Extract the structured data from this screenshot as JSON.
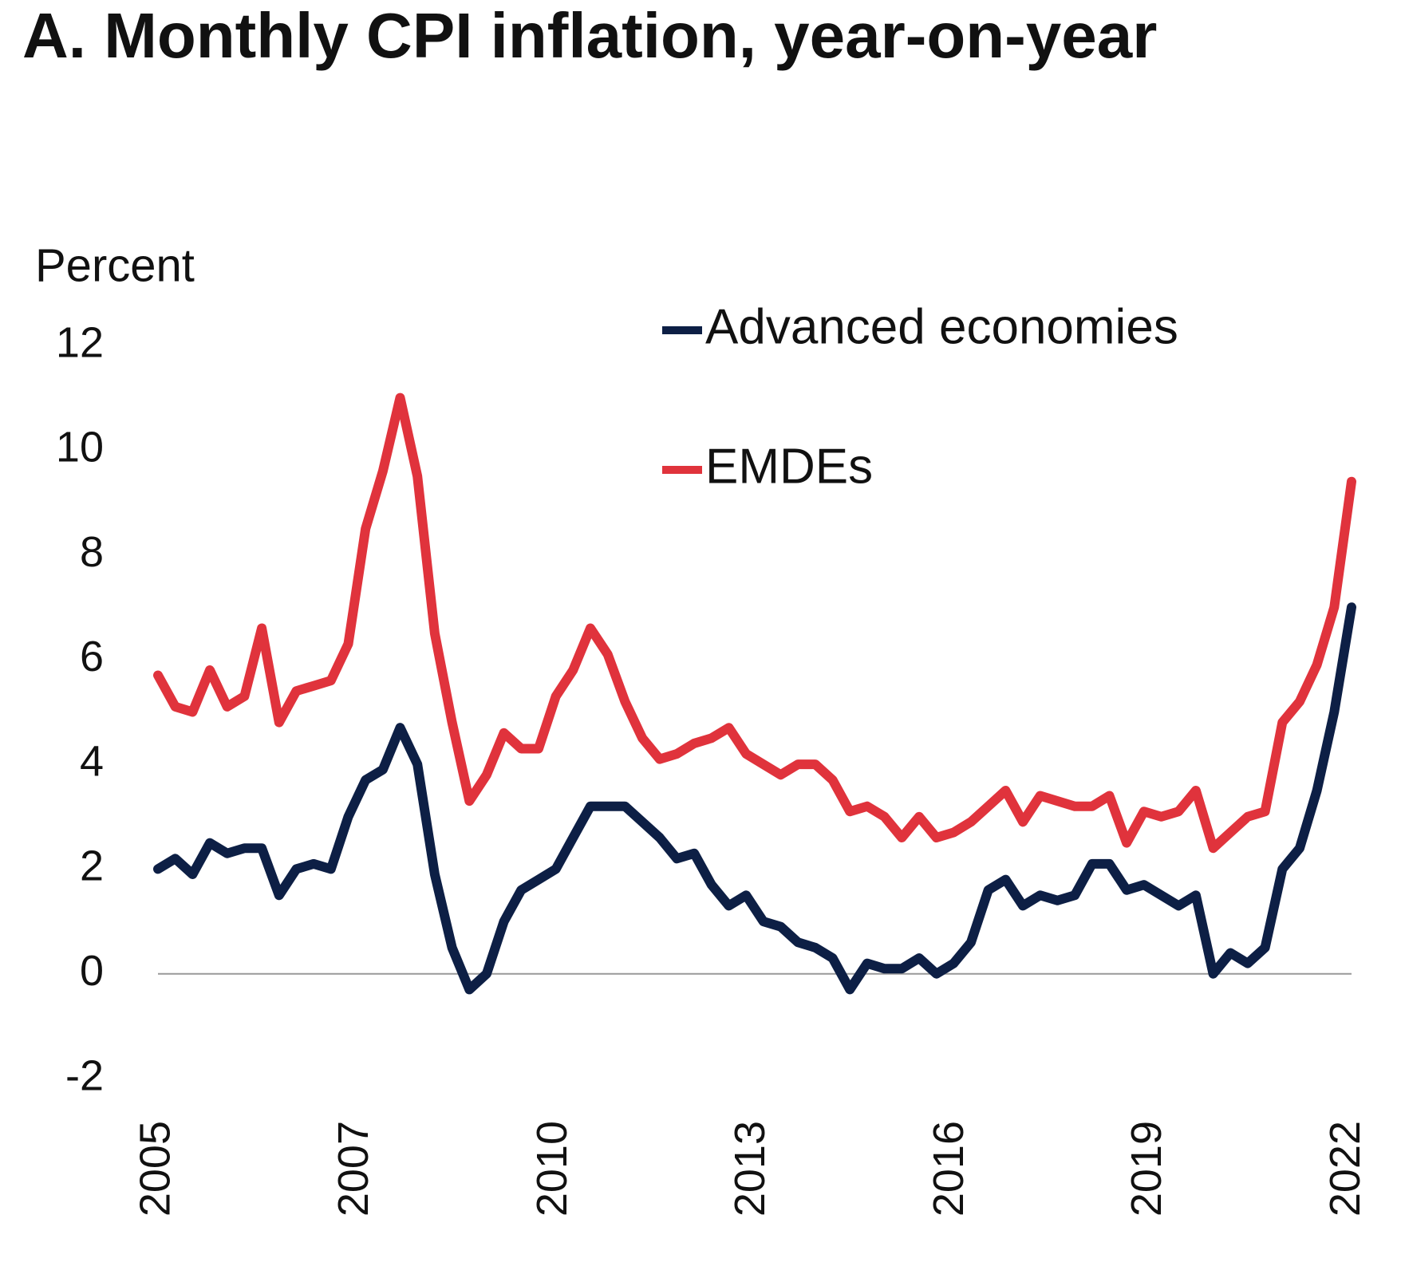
{
  "chart_data": {
    "type": "line",
    "title": "A. Monthly CPI inflation, year-on-year",
    "y_label": "Percent",
    "x": [
      2005.0,
      2005.25,
      2005.5,
      2005.75,
      2006.0,
      2006.25,
      2006.5,
      2006.75,
      2007.0,
      2007.25,
      2007.5,
      2007.75,
      2008.0,
      2008.25,
      2008.5,
      2008.75,
      2009.0,
      2009.25,
      2009.5,
      2009.75,
      2010.0,
      2010.25,
      2010.5,
      2010.75,
      2011.0,
      2011.25,
      2011.5,
      2011.75,
      2012.0,
      2012.25,
      2012.5,
      2012.75,
      2013.0,
      2013.25,
      2013.5,
      2013.75,
      2014.0,
      2014.25,
      2014.5,
      2014.75,
      2015.0,
      2015.25,
      2015.5,
      2015.75,
      2016.0,
      2016.25,
      2016.5,
      2016.75,
      2017.0,
      2017.25,
      2017.5,
      2017.75,
      2018.0,
      2018.25,
      2018.5,
      2018.75,
      2019.0,
      2019.25,
      2019.5,
      2019.75,
      2020.0,
      2020.25,
      2020.5,
      2020.75,
      2021.0,
      2021.25,
      2021.5,
      2021.75,
      2022.0,
      2022.25
    ],
    "series": [
      {
        "name": "Advanced economies",
        "color": "#0d1f45",
        "values": [
          2.0,
          2.2,
          1.9,
          2.5,
          2.3,
          2.4,
          2.4,
          1.5,
          2.0,
          2.1,
          2.0,
          3.0,
          3.7,
          3.9,
          4.7,
          4.0,
          1.9,
          0.5,
          -0.3,
          0.0,
          1.0,
          1.6,
          1.8,
          2.0,
          2.6,
          3.2,
          3.2,
          3.2,
          2.9,
          2.6,
          2.2,
          2.3,
          1.7,
          1.3,
          1.5,
          1.0,
          0.9,
          0.6,
          0.5,
          0.3,
          -0.3,
          0.2,
          0.1,
          0.1,
          0.3,
          0.0,
          0.2,
          0.6,
          1.6,
          1.8,
          1.3,
          1.5,
          1.4,
          1.5,
          2.1,
          2.1,
          1.6,
          1.7,
          1.5,
          1.3,
          1.5,
          0.0,
          0.4,
          0.2,
          0.5,
          2.0,
          2.4,
          3.5,
          5.0,
          7.0
        ]
      },
      {
        "name": "EMDEs",
        "color": "#e0333c",
        "values": [
          5.7,
          5.1,
          5.0,
          5.8,
          5.1,
          5.3,
          6.6,
          4.8,
          5.4,
          5.5,
          5.6,
          6.3,
          8.5,
          9.6,
          11.0,
          9.5,
          6.5,
          4.8,
          3.3,
          3.8,
          4.6,
          4.3,
          4.3,
          5.3,
          5.8,
          6.6,
          6.1,
          5.2,
          4.5,
          4.1,
          4.2,
          4.4,
          4.5,
          4.7,
          4.2,
          4.0,
          3.8,
          4.0,
          4.0,
          3.7,
          3.1,
          3.2,
          3.0,
          2.6,
          3.0,
          2.6,
          2.7,
          2.9,
          3.2,
          3.5,
          2.9,
          3.4,
          3.3,
          3.2,
          3.2,
          3.4,
          2.5,
          3.1,
          3.0,
          3.1,
          3.5,
          2.4,
          2.7,
          3.0,
          3.1,
          4.8,
          5.2,
          5.9,
          7.0,
          9.4
        ]
      }
    ],
    "xlim": [
      2005.0,
      2022.25
    ],
    "xticks": [
      {
        "value": 2005.0,
        "label": "2005"
      },
      {
        "value": 2007.87,
        "label": "2007"
      },
      {
        "value": 2010.74,
        "label": "2010"
      },
      {
        "value": 2013.6,
        "label": "2013"
      },
      {
        "value": 2016.47,
        "label": "2016"
      },
      {
        "value": 2019.33,
        "label": "2019"
      },
      {
        "value": 2022.2,
        "label": "2022"
      }
    ],
    "ylim": [
      -2,
      12
    ],
    "yticks": [
      -2,
      0,
      2,
      4,
      6,
      8,
      10,
      12
    ],
    "zero_line": true,
    "legend": "top-right"
  }
}
